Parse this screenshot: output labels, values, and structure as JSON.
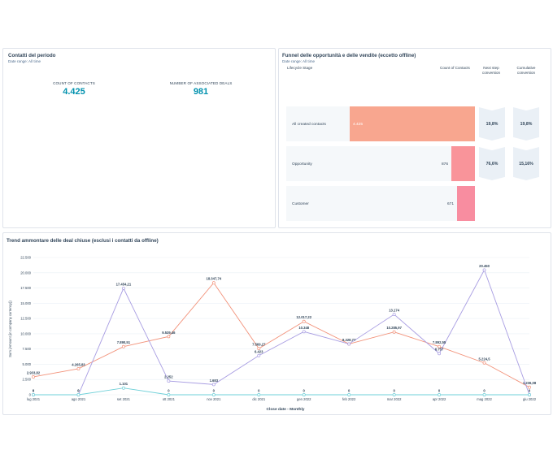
{
  "contacts": {
    "title": "Contatti del periodo",
    "date_range": "Date range: All time",
    "kpis": [
      {
        "label": "COUNT OF CONTACTS",
        "value": "4.425"
      },
      {
        "label": "NUMBER OF ASSOCIATED DEALS",
        "value": "981"
      }
    ]
  },
  "funnel": {
    "title": "Funnel delle opportunità e delle vendite (eccetto offline)",
    "date_range": "Date range: All time",
    "headers": {
      "stage": "Lifecycle Stage",
      "count": "Count of Contacts",
      "next_step": "Next step conversion",
      "cumulative": "Cumulative conversion"
    },
    "rows": [
      {
        "label": "All created contacts",
        "count": 4425,
        "count_label": "4.425",
        "next": "19,8%",
        "cumulative": "19,8%",
        "color": "#f8a68f"
      },
      {
        "label": "Opportunity",
        "count": 876,
        "count_label": "876",
        "next": "76,6%",
        "cumulative": "15,16%",
        "color": "#f9949a"
      },
      {
        "label": "Customer",
        "count": 671,
        "count_label": "671",
        "next": "",
        "cumulative": "",
        "color": "#f88da0"
      }
    ]
  },
  "trend": {
    "title": "Trend ammontare delle deal chiuse (esclusi i contatti da offline)",
    "chart_data": {
      "type": "line",
      "xlabel": "Close date - Monthly",
      "ylabel": "Sum (Amount (in company currency))",
      "ylim": [
        0,
        22500
      ],
      "yticks": [
        "0",
        "2.500",
        "5.000",
        "7.500",
        "10.000",
        "12.500",
        "15.000",
        "17.500",
        "20.000",
        "22.500"
      ],
      "ytick_values": [
        0,
        2500,
        5000,
        7500,
        10000,
        12500,
        15000,
        17500,
        20000,
        22500
      ],
      "categories": [
        "lug 2021",
        "ago 2021",
        "set 2021",
        "ott 2021",
        "nov 2021",
        "dic 2021",
        "gen 2022",
        "feb 2022",
        "mar 2022",
        "apr 2022",
        "mag 2022",
        "giu 2022"
      ],
      "grid": true,
      "series": [
        {
          "color": "#f2927a",
          "values": [
            2933.82,
            4265.83,
            7890.51,
            9539.46,
            18347.74,
            7569.27,
            12017.22,
            8328.77,
            10285.97,
            7892.55,
            5224.5,
            1236.08
          ],
          "labels": [
            "2.933,82",
            "4.265,83",
            "7.890,51",
            "9.539,46",
            "18.347,74",
            "7.569,27",
            "12.017,22",
            "8.328,77",
            "10.285,97",
            "7.892,55",
            "5.224,5",
            "1.236,08"
          ]
        },
        {
          "color": "#a89de2",
          "values": [
            0,
            0,
            17454.21,
            2252,
            1683,
            6423,
            10348,
            8328.77,
            13174,
            6757,
            20450,
            0
          ],
          "labels": [
            "0",
            "0",
            "17.454,21",
            "2.252",
            "1.683",
            "6.423",
            "10.348",
            "",
            "13.174",
            "6.757",
            "20.450",
            ""
          ]
        },
        {
          "color": "#6fd0d8",
          "values": [
            0,
            0,
            1101,
            0,
            0,
            0,
            0,
            0,
            0,
            0,
            0,
            0
          ],
          "labels": [
            "0",
            "0",
            "1.101",
            "0",
            "0",
            "0",
            "0",
            "0",
            "0",
            "0",
            "0",
            "0"
          ]
        }
      ]
    }
  }
}
